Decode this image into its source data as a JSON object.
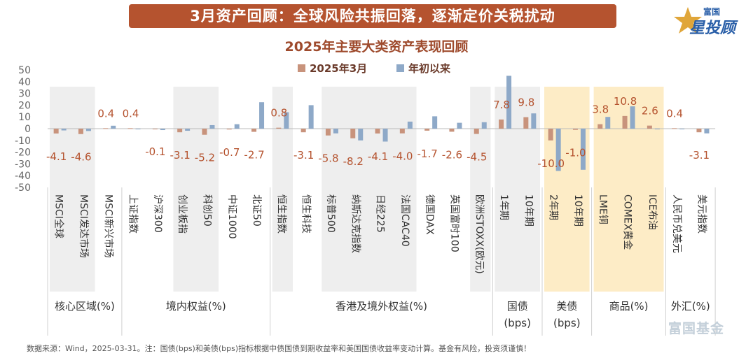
{
  "banner_title": "3月资产回顾：全球风险共振回落，逐渐定价关税扰动",
  "brand": {
    "name": "富国",
    "tagline": "星投顾",
    "watermark": "富国基金"
  },
  "footnote": "数据来源：Wind，2025-03-31。注：国债(bps)和美债(bps)指标根据中债国债到期收益率和美国国债收益率变动计算。基金有风险，投资须谨慎！",
  "colors": {
    "series_march": "#c8937c",
    "series_ytd": "#8ea9c8",
    "label_text": "#b5532f",
    "gray_band": "#eeeeee",
    "yellow_band": "#fdecc6",
    "banner": "#b5532f"
  },
  "chart_data": {
    "type": "bar",
    "title": "2025年主要大类资产表现回顾",
    "ylim": [
      -50,
      50
    ],
    "yticks": [
      "50",
      "40",
      "30",
      "20",
      "10",
      "0",
      "-10",
      "-20",
      "-30",
      "-40",
      "-50"
    ],
    "grid": false,
    "legend_position": "top-center",
    "categories": [
      "MSCI全球",
      "MSCI发达市场",
      "MSCI新兴市场",
      "上证指数",
      "沪深300",
      "创业板指",
      "科创50",
      "中证1000",
      "北证50",
      "恒生指数",
      "恒生科技",
      "标普500",
      "纳斯达克指数",
      "日经225",
      "法国CAC40",
      "德国DAX",
      "英国富时100",
      "欧洲STOXX(欧元)",
      "1年期",
      "10年期",
      "2年期",
      "10年期",
      "LME铜",
      "COMEX黄金",
      "ICE布油",
      "人民币兑美元",
      "美元指数"
    ],
    "series": [
      {
        "name": "2025年3月",
        "values": [
          -4.1,
          -4.6,
          0.4,
          0.4,
          -0.1,
          -3.1,
          -5.2,
          -0.7,
          -2.7,
          0.8,
          -3.1,
          -5.8,
          -8.2,
          -4.1,
          -4.0,
          -1.7,
          -2.6,
          -4.5,
          7.8,
          9.8,
          -10.0,
          -1.0,
          3.8,
          10.8,
          2.6,
          0.4,
          -3.1
        ]
      },
      {
        "name": "年初以来",
        "values": [
          -1.5,
          -2.0,
          2.5,
          -0.4,
          -1.2,
          -1.8,
          3.0,
          3.8,
          22.5,
          14.0,
          20.0,
          -4.0,
          -10.0,
          -11.0,
          6.0,
          10.5,
          5.0,
          5.5,
          45.0,
          13.0,
          -36.0,
          -35.0,
          10.0,
          19.0,
          -0.3,
          -0.5,
          -4.0
        ]
      }
    ],
    "data_labels": [
      "-4.1",
      "-4.6",
      "0.4",
      "0.4",
      "-0.1",
      "-3.1",
      "-5.2",
      "-0.7",
      "-2.7",
      "0.8",
      "-3.1",
      "-5.8",
      "-8.2",
      "-4.1",
      "-4.0",
      "-1.7",
      "-2.6",
      "-4.5",
      "7.8",
      "9.8",
      "-10.0",
      "-1.0",
      "3.8",
      "10.8",
      "2.6",
      "0.4",
      "-3.1"
    ],
    "groups": [
      {
        "label": "核心区域(%)",
        "count": 3
      },
      {
        "label": "境内权益(%)",
        "count": 6
      },
      {
        "label": "香港及境外权益(%)",
        "count": 9
      },
      {
        "label": "国债\n(bps)",
        "count": 2
      },
      {
        "label": "美债\n(bps)",
        "count": 2
      },
      {
        "label": "商品(%)",
        "count": 3
      },
      {
        "label": "外汇(%)",
        "count": 2
      }
    ],
    "shaded_bands": [
      {
        "from": 0,
        "to": 1,
        "color": "gray"
      },
      {
        "from": 5,
        "to": 6,
        "color": "gray"
      },
      {
        "from": 9,
        "to": 9,
        "color": "gray"
      },
      {
        "from": 11,
        "to": 14,
        "color": "gray"
      },
      {
        "from": 17,
        "to": 17,
        "color": "gray"
      },
      {
        "from": 18,
        "to": 19,
        "color": "gray"
      },
      {
        "from": 20,
        "to": 21,
        "color": "yellow"
      },
      {
        "from": 22,
        "to": 24,
        "color": "yellow"
      }
    ]
  }
}
